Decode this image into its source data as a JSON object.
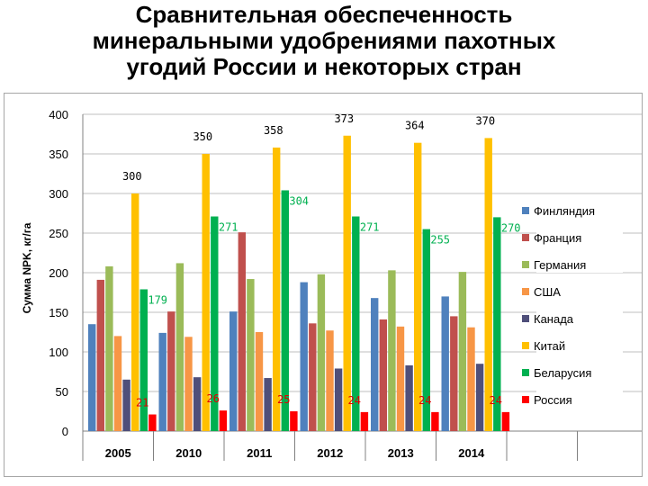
{
  "page": {
    "title": "Сравнительная обеспеченность\nминеральными удобрениями пахотных\nугодий России и некоторых стран"
  },
  "chart_data": {
    "type": "bar",
    "title": "",
    "xlabel": "",
    "ylabel": "Сумма NPK, кг/га",
    "ylim": [
      0,
      400
    ],
    "yticks": [
      0,
      50,
      100,
      150,
      200,
      250,
      300,
      350,
      400
    ],
    "grid": "horizontal",
    "legend_position": "right",
    "categories": [
      "2005",
      "2010",
      "2011",
      "2012",
      "2013",
      "2014"
    ],
    "series": [
      {
        "name": "Финляндия",
        "color": "#4f81bd",
        "values": [
          135,
          124,
          151,
          188,
          168,
          170
        ]
      },
      {
        "name": "Франция",
        "color": "#c0504d",
        "values": [
          191,
          151,
          251,
          136,
          141,
          145
        ]
      },
      {
        "name": "Германия",
        "color": "#9bbb59",
        "values": [
          208,
          212,
          192,
          198,
          203,
          201
        ]
      },
      {
        "name": "США",
        "color": "#f79646",
        "values": [
          120,
          119,
          125,
          127,
          132,
          131
        ]
      },
      {
        "name": "Канада",
        "color": "#4f4f7a",
        "values": [
          65,
          68,
          67,
          79,
          83,
          85
        ]
      },
      {
        "name": "Китай",
        "color": "#ffc000",
        "values": [
          300,
          350,
          358,
          373,
          364,
          370
        ],
        "labels": [
          "300",
          "350",
          "358",
          "373",
          "364",
          "370"
        ],
        "label_color": "#000000"
      },
      {
        "name": "Беларусия",
        "color": "#00b050",
        "values": [
          179,
          271,
          304,
          271,
          255,
          270
        ],
        "labels": [
          "179",
          "271",
          "304",
          "271",
          "255",
          "270"
        ],
        "label_color": "#00b050"
      },
      {
        "name": "Россия",
        "color": "#ff0000",
        "values": [
          21,
          26,
          25,
          24,
          24,
          24
        ],
        "labels": [
          "21",
          "26",
          "25",
          "24",
          "24",
          "24"
        ],
        "label_color": "#e00000"
      }
    ]
  }
}
